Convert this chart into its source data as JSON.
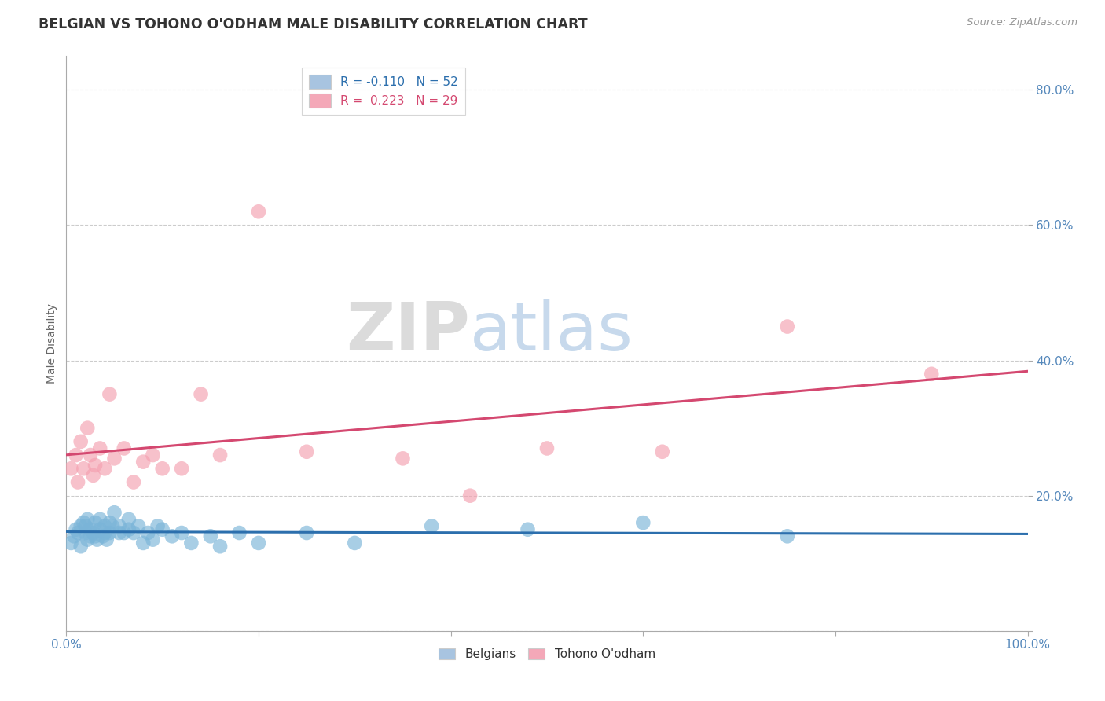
{
  "title": "BELGIAN VS TOHONO O'ODHAM MALE DISABILITY CORRELATION CHART",
  "source": "Source: ZipAtlas.com",
  "ylabel": "Male Disability",
  "xlabel": "",
  "xlim": [
    0.0,
    1.0
  ],
  "ylim": [
    0.0,
    0.85
  ],
  "xticks": [
    0.0,
    0.2,
    0.4,
    0.6,
    0.8,
    1.0
  ],
  "xtick_labels": [
    "0.0%",
    "",
    "",
    "",
    "",
    "100.0%"
  ],
  "ytick_positions": [
    0.0,
    0.2,
    0.4,
    0.6,
    0.8
  ],
  "ytick_labels": [
    "",
    "20.0%",
    "40.0%",
    "60.0%",
    "80.0%"
  ],
  "legend_blue_label": "R = -0.110   N = 52",
  "legend_pink_label": "R =  0.223   N = 29",
  "legend_blue_color": "#a8c4e0",
  "legend_pink_color": "#f4a8b8",
  "scatter_blue_color": "#7ab4d8",
  "scatter_pink_color": "#f4a0b0",
  "line_blue_color": "#2c6fad",
  "line_pink_color": "#d44870",
  "background_color": "#ffffff",
  "grid_color": "#cccccc",
  "title_color": "#333333",
  "axis_label_color": "#5588bb",
  "watermark_zip": "ZIP",
  "watermark_atlas": "atlas",
  "blue_x": [
    0.005,
    0.008,
    0.01,
    0.012,
    0.015,
    0.015,
    0.018,
    0.02,
    0.02,
    0.022,
    0.022,
    0.025,
    0.025,
    0.028,
    0.03,
    0.03,
    0.032,
    0.035,
    0.035,
    0.038,
    0.04,
    0.04,
    0.042,
    0.045,
    0.045,
    0.048,
    0.05,
    0.055,
    0.055,
    0.06,
    0.065,
    0.065,
    0.07,
    0.075,
    0.08,
    0.085,
    0.09,
    0.095,
    0.1,
    0.11,
    0.12,
    0.13,
    0.15,
    0.16,
    0.18,
    0.2,
    0.25,
    0.3,
    0.38,
    0.48,
    0.6,
    0.75
  ],
  "blue_y": [
    0.13,
    0.14,
    0.15,
    0.145,
    0.155,
    0.125,
    0.16,
    0.145,
    0.155,
    0.135,
    0.165,
    0.14,
    0.15,
    0.145,
    0.14,
    0.16,
    0.135,
    0.15,
    0.165,
    0.14,
    0.145,
    0.155,
    0.135,
    0.145,
    0.16,
    0.155,
    0.175,
    0.145,
    0.155,
    0.145,
    0.15,
    0.165,
    0.145,
    0.155,
    0.13,
    0.145,
    0.135,
    0.155,
    0.15,
    0.14,
    0.145,
    0.13,
    0.14,
    0.125,
    0.145,
    0.13,
    0.145,
    0.13,
    0.155,
    0.15,
    0.16,
    0.14
  ],
  "pink_x": [
    0.005,
    0.01,
    0.012,
    0.015,
    0.018,
    0.022,
    0.025,
    0.028,
    0.03,
    0.035,
    0.04,
    0.045,
    0.05,
    0.06,
    0.07,
    0.08,
    0.09,
    0.1,
    0.12,
    0.14,
    0.16,
    0.2,
    0.25,
    0.35,
    0.42,
    0.5,
    0.62,
    0.75,
    0.9
  ],
  "pink_y": [
    0.24,
    0.26,
    0.22,
    0.28,
    0.24,
    0.3,
    0.26,
    0.23,
    0.245,
    0.27,
    0.24,
    0.35,
    0.255,
    0.27,
    0.22,
    0.25,
    0.26,
    0.24,
    0.24,
    0.35,
    0.26,
    0.62,
    0.265,
    0.255,
    0.2,
    0.27,
    0.265,
    0.45,
    0.38
  ]
}
